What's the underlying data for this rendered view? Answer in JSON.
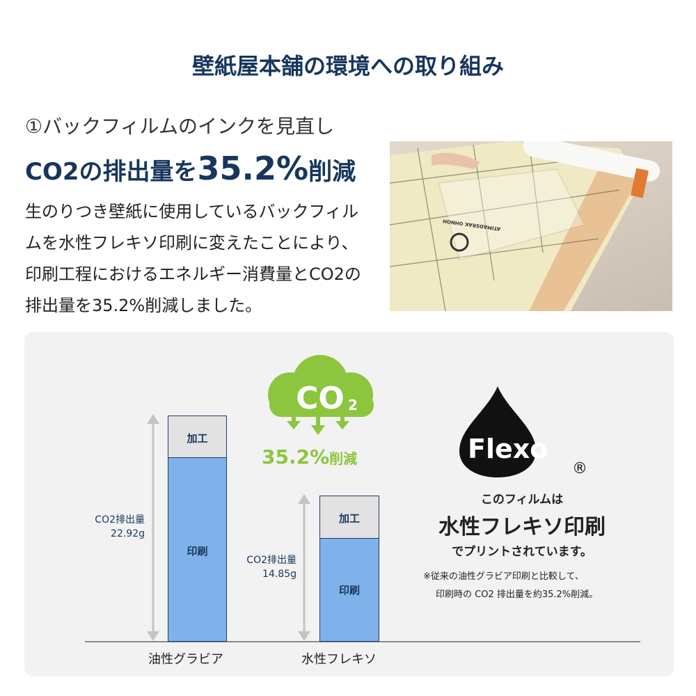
{
  "title": "壁紙屋本舗の環境への取り組み",
  "section": {
    "heading": "①バックフィルムのインクを見直し",
    "headline_prefix": "CO2の排出量を",
    "headline_value": "35.2%",
    "headline_suffix": "削減",
    "body": "生のりつき壁紙に使用しているバックフィルムを水性フレキソ印刷に変えたことにより、印刷工程におけるエネルギー消費量とCO2の排出量を35.2%削減しました。"
  },
  "photo": {
    "print_text": "ATIMADSRAK OHNOH"
  },
  "colors": {
    "navy": "#17365d",
    "green": "#8cc63f",
    "bar_blue": "#7fb2ea",
    "bar_gray": "#e2e2e2"
  },
  "chart": {
    "bars": [
      {
        "category": "油性グラビア",
        "total_label": "CO2排出量",
        "total_value": "22.92g",
        "segments": {
          "processing": "加工",
          "printing": "印刷"
        }
      },
      {
        "category": "水性フレキソ",
        "total_label": "CO2排出量",
        "total_value": "14.85g",
        "segments": {
          "processing": "加工",
          "printing": "印刷"
        }
      }
    ]
  },
  "co2": {
    "icon_text": "CO",
    "icon_sub": "2",
    "reduction": "35.2%",
    "reduction_suffix": "削減"
  },
  "flexo": {
    "logo": "Flexo",
    "registered": "®",
    "line1": "このフィルムは",
    "line2": "水性フレキソ印刷",
    "line3": "でプリントされています。",
    "note1": "※従来の油性グラビア印刷と比較して、",
    "note2": "印刷時の CO2 排出量を約35.2%削減。"
  }
}
